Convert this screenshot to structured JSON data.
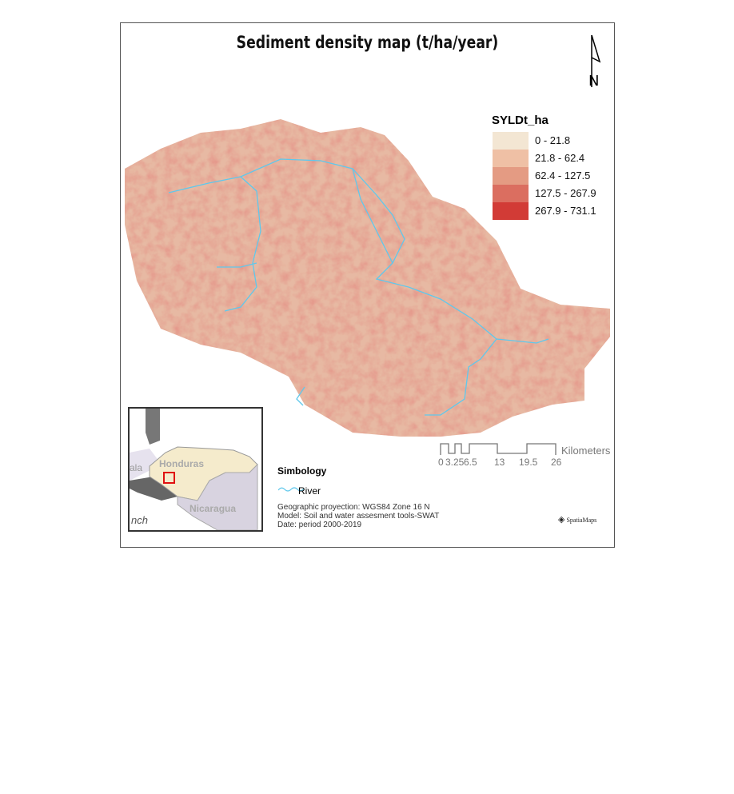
{
  "title": "Sediment density map (t/ha/year)",
  "north_arrow": {
    "icon": "north-arrow-icon",
    "label": "N"
  },
  "legend": {
    "title": "SYLDt_ha",
    "classes": [
      {
        "label": "0 - 21.8",
        "color": "#f3e6d3"
      },
      {
        "label": "21.8 - 62.4",
        "color": "#efc0a5"
      },
      {
        "label": "62.4 - 127.5",
        "color": "#e49b83"
      },
      {
        "label": "127.5 - 267.9",
        "color": "#db6e60"
      },
      {
        "label": "267.9 - 731.1",
        "color": "#d23b36"
      }
    ]
  },
  "scale_bar": {
    "ticks": [
      "0",
      "3.25",
      "6.5",
      "13",
      "19.5",
      "26"
    ],
    "unit": "Kilometers"
  },
  "symbology": {
    "title": "Simbology",
    "river_label": "River",
    "river_color": "#5fc8ec"
  },
  "metadata": {
    "projection": "Geographic proyection: WGS84 Zone 16 N",
    "model": "Model: Soil and water assesment tools-SWAT",
    "date": "Date: period 2000-2019"
  },
  "inset": {
    "labels": {
      "honduras": "Honduras",
      "nicaragua": "Nicaragua",
      "guatemala_partial": "ala",
      "french_partial": "nch"
    },
    "highlight_color": "#e01010"
  },
  "logo": "SpatiaMaps"
}
